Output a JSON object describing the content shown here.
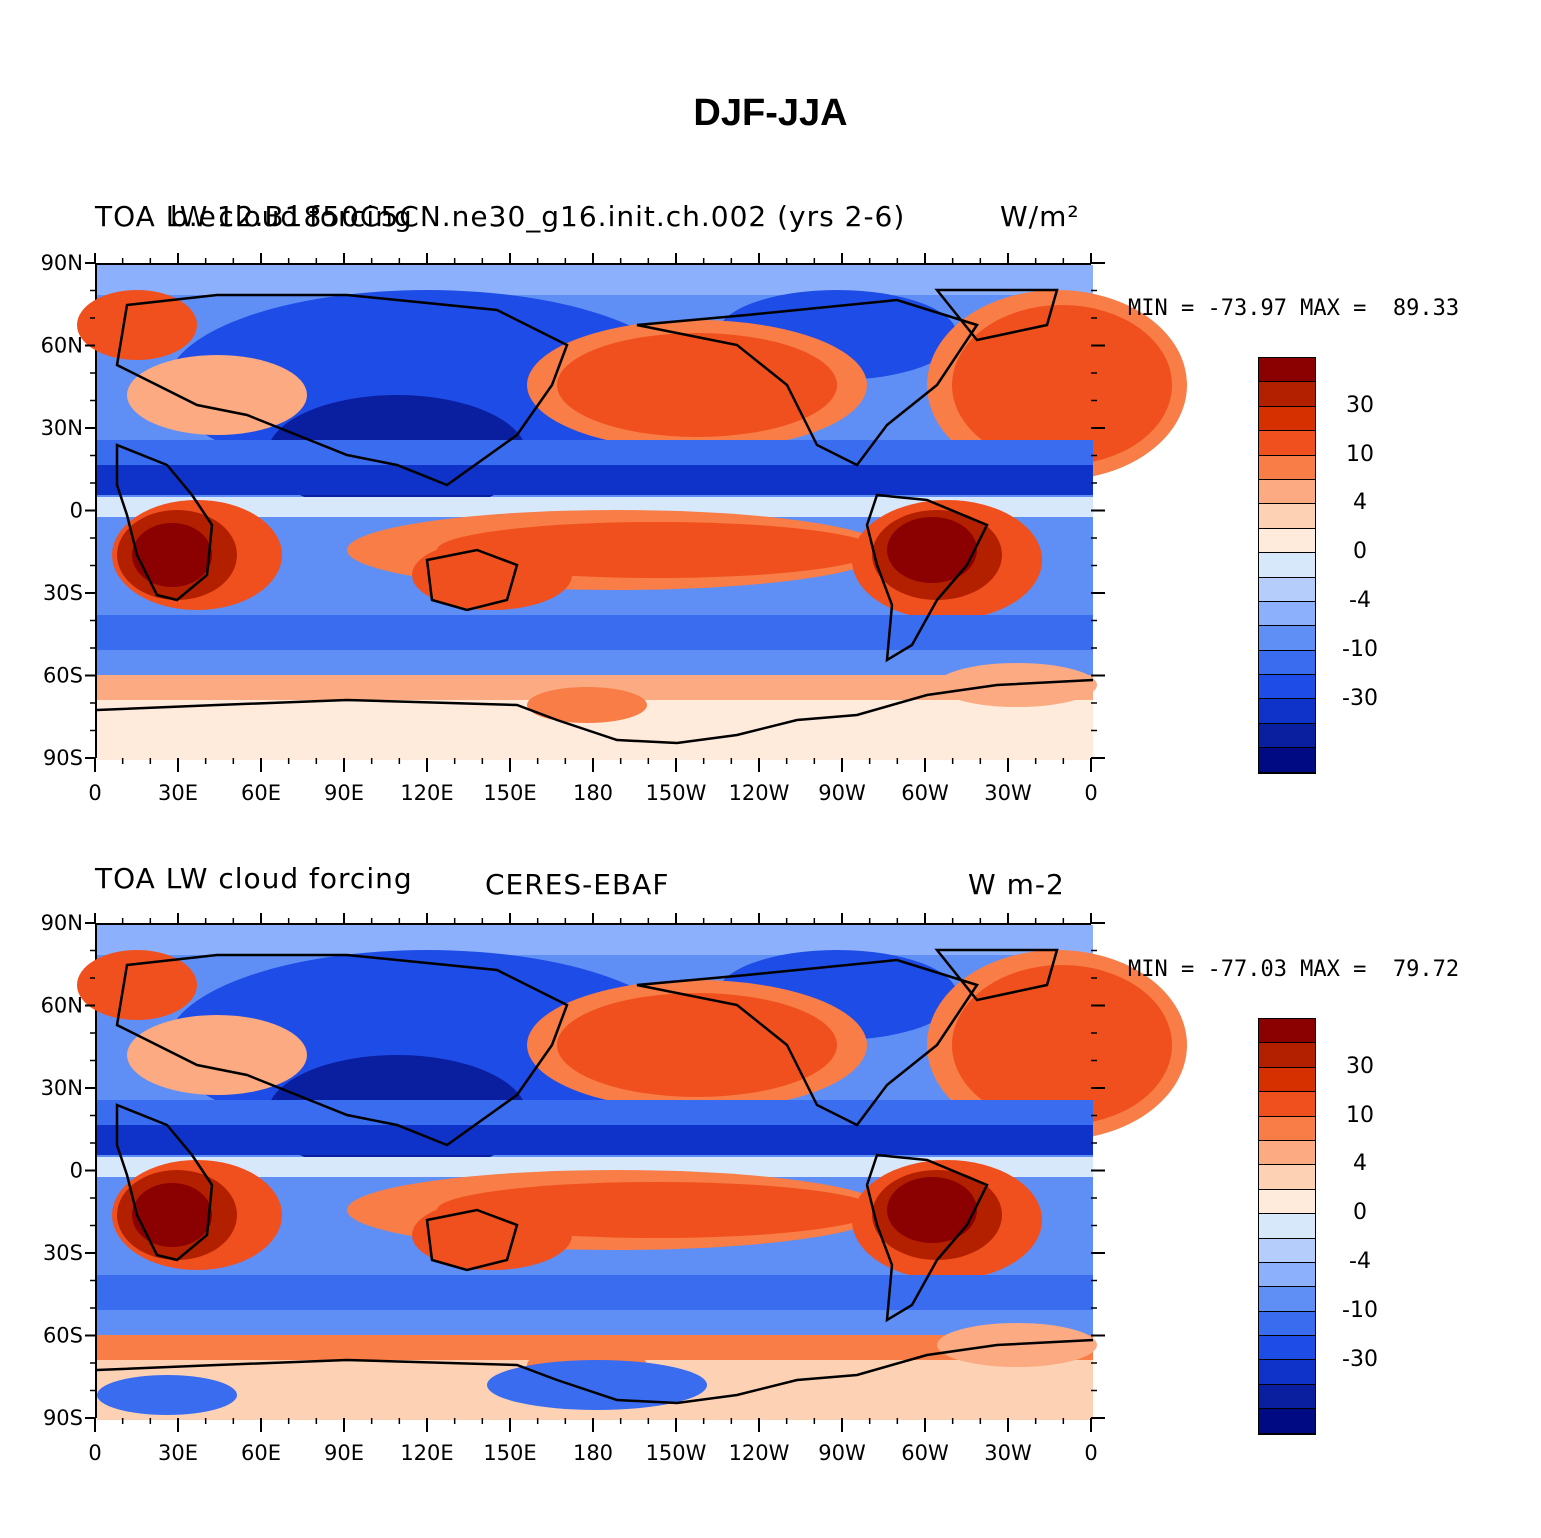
{
  "title": "DJF-JJA",
  "panels": [
    {
      "id": "model",
      "left_title": "TOA LW cloud forcing",
      "center_title": "b.e12.B1850C5CN.ne30_g16.init.ch.002 (yrs 2-6)",
      "right_title": "W/m²",
      "stats": "MIN = -73.97 MAX =  89.33",
      "min": -73.97,
      "max": 89.33
    },
    {
      "id": "obs",
      "left_title": "TOA LW cloud forcing",
      "center_title": "CERES-EBAF",
      "right_title": "W m-2",
      "stats": "MIN = -77.03 MAX =  79.72",
      "min": -77.03,
      "max": 79.72
    }
  ],
  "lat_labels": [
    "90N",
    "60N",
    "30N",
    "0",
    "30S",
    "60S",
    "90S"
  ],
  "lon_labels": [
    "0",
    "30E",
    "60E",
    "90E",
    "120E",
    "150E",
    "180",
    "150W",
    "120W",
    "90W",
    "60W",
    "30W",
    "0"
  ],
  "colorbar": {
    "colors": [
      "#8b0000",
      "#b22000",
      "#d73000",
      "#f0501e",
      "#f87d46",
      "#fbaa82",
      "#fdd2b4",
      "#ffebdc",
      "#d7e8fb",
      "#b4cdfb",
      "#8cb0fb",
      "#5f8ff5",
      "#3a6cf0",
      "#1e4ce6",
      "#0f32c8",
      "#0a1ea0",
      "#000a82"
    ],
    "labels": [
      "30",
      "10",
      "4",
      "0",
      "-4",
      "-10",
      "-30"
    ]
  },
  "palette": {
    "land_outline": "#000000"
  }
}
